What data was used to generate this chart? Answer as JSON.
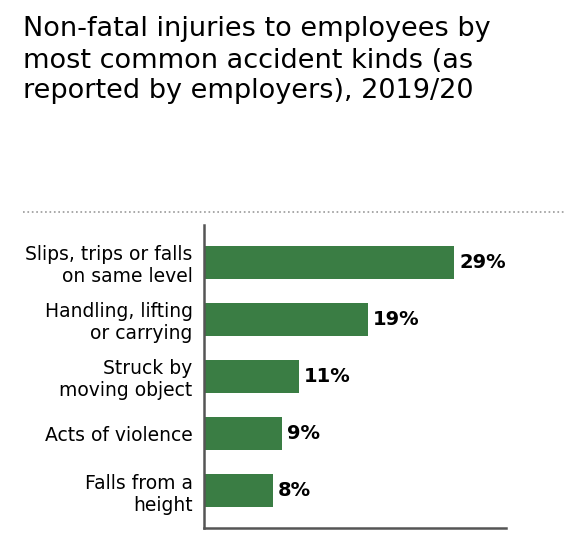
{
  "title": "Non-fatal injuries to employees by\nmost common accident kinds (as\nreported by employers), 2019/20",
  "categories": [
    "Falls from a\nheight",
    "Acts of violence",
    "Struck by\nmoving object",
    "Handling, lifting\nor carrying",
    "Slips, trips or falls\non same level"
  ],
  "values": [
    8,
    9,
    11,
    19,
    29
  ],
  "labels": [
    "8%",
    "9%",
    "11%",
    "19%",
    "29%"
  ],
  "bar_color": "#3a7d44",
  "background_color": "#ffffff",
  "title_fontsize": 19.5,
  "tick_fontsize": 13.5,
  "bar_label_fontsize": 14,
  "xlim": [
    0,
    35
  ],
  "separator_color": "#999999",
  "spine_color": "#555555"
}
